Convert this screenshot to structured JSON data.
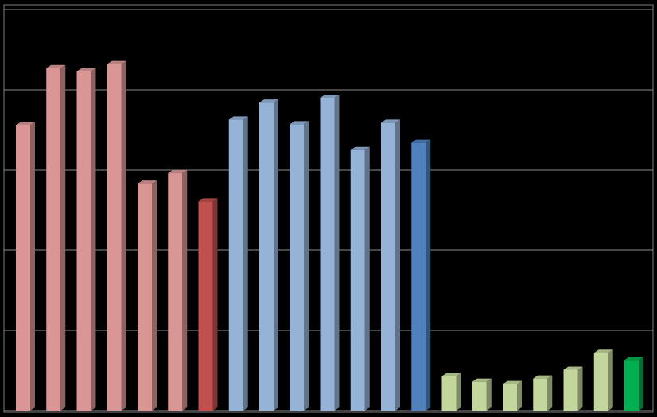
{
  "chart_data": {
    "type": "bar3d",
    "categories": [
      null,
      null,
      null,
      null,
      null,
      null,
      null,
      null,
      null,
      null,
      null,
      null,
      null,
      null,
      null,
      null,
      null,
      null,
      null,
      null,
      null
    ],
    "values": [
      3.56,
      4.27,
      4.23,
      4.32,
      2.83,
      2.96,
      2.61,
      3.63,
      3.84,
      3.57,
      3.9,
      3.25,
      3.59,
      3.34,
      0.43,
      0.36,
      0.33,
      0.4,
      0.51,
      0.72,
      0.63
    ],
    "colors": [
      "#d99694",
      "#d99694",
      "#d99694",
      "#d99694",
      "#d99694",
      "#d99694",
      "#c0504d",
      "#95b3d7",
      "#95b3d7",
      "#95b3d7",
      "#95b3d7",
      "#95b3d7",
      "#95b3d7",
      "#4f81bd",
      "#c3d69b",
      "#c3d69b",
      "#c3d69b",
      "#c3d69b",
      "#c3d69b",
      "#c3d69b",
      "#00b050"
    ],
    "ylim": [
      0,
      5
    ],
    "yticks": [
      0,
      1,
      2,
      3,
      4,
      5
    ],
    "grid": true
  }
}
